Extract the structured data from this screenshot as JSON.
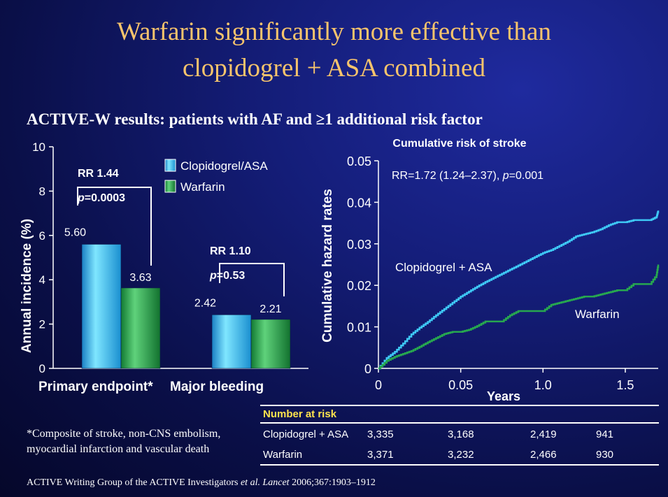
{
  "title_line1": "Warfarin significantly more effective than",
  "title_line2": "clopidogrel + ASA combined",
  "subtitle": "ACTIVE-W results: patients with AF and ≥1 additional risk factor",
  "colors": {
    "title": "#f7c46c",
    "clopidogrel": "#3ec8f5",
    "warfarin": "#27a84f",
    "table_header": "#ffe34d"
  },
  "chart_data": [
    {
      "type": "bar",
      "ylabel": "Annual incidence (%)",
      "ylim": [
        0,
        10
      ],
      "yticks": [
        "0",
        "2",
        "4",
        "6",
        "8",
        "10"
      ],
      "categories": [
        "Primary endpoint*",
        "Major bleeding"
      ],
      "series": [
        {
          "name": "Clopidogrel/ASA",
          "values": [
            5.6,
            2.42
          ],
          "labels": [
            "5.60",
            "2.42"
          ]
        },
        {
          "name": "Warfarin",
          "values": [
            3.63,
            2.21
          ],
          "labels": [
            "3.63",
            "2.21"
          ]
        }
      ],
      "annotations": [
        {
          "rr": "RR 1.44",
          "p_italic": "p",
          "p_rest": "=0.0003"
        },
        {
          "rr": "RR 1.10",
          "p_italic": "p",
          "p_rest": "=0.53"
        }
      ],
      "legend": "top-right"
    },
    {
      "type": "line",
      "title": "Cumulative risk of stroke",
      "xlabel": "Years",
      "ylabel": "Cumulative hazard rates",
      "xlim": [
        0,
        1.7
      ],
      "ylim": [
        0,
        0.05
      ],
      "xticks": [
        "0",
        "0.05",
        "1.0",
        "1.5"
      ],
      "yticks": [
        "0",
        "0.01",
        "0.02",
        "0.03",
        "0.04",
        "0.05"
      ],
      "annotation": {
        "prefix": "RR=1.72 (1.24–2.37), ",
        "p_italic": "p",
        "p_rest": "=0.001"
      },
      "series": [
        {
          "name": "Clopidogrel + ASA",
          "x": [
            0,
            0.05,
            0.1,
            0.15,
            0.2,
            0.25,
            0.3,
            0.35,
            0.4,
            0.45,
            0.5,
            0.55,
            0.6,
            0.65,
            0.7,
            0.75,
            0.8,
            0.85,
            0.9,
            0.95,
            1.0,
            1.05,
            1.1,
            1.15,
            1.2,
            1.25,
            1.3,
            1.35,
            1.4,
            1.45,
            1.5,
            1.55,
            1.6,
            1.65,
            1.69,
            1.7
          ],
          "y": [
            0,
            0.0025,
            0.004,
            0.006,
            0.0082,
            0.0098,
            0.0112,
            0.0128,
            0.0143,
            0.0158,
            0.0173,
            0.0185,
            0.0197,
            0.0208,
            0.0218,
            0.0228,
            0.0238,
            0.0248,
            0.0258,
            0.0268,
            0.0278,
            0.0285,
            0.0295,
            0.0305,
            0.0318,
            0.0323,
            0.0328,
            0.0335,
            0.0345,
            0.0352,
            0.0352,
            0.0357,
            0.0357,
            0.0357,
            0.0365,
            0.038
          ]
        },
        {
          "name": "Warfarin",
          "x": [
            0,
            0.05,
            0.1,
            0.15,
            0.2,
            0.25,
            0.3,
            0.35,
            0.4,
            0.45,
            0.5,
            0.55,
            0.6,
            0.65,
            0.7,
            0.75,
            0.8,
            0.85,
            0.9,
            0.95,
            1.0,
            1.05,
            1.1,
            1.15,
            1.2,
            1.25,
            1.3,
            1.35,
            1.4,
            1.45,
            1.5,
            1.55,
            1.6,
            1.65,
            1.69,
            1.7
          ],
          "y": [
            0,
            0.0018,
            0.0028,
            0.0035,
            0.0042,
            0.0052,
            0.0063,
            0.0073,
            0.0083,
            0.0088,
            0.0088,
            0.0093,
            0.0102,
            0.0113,
            0.0113,
            0.0113,
            0.0128,
            0.0138,
            0.0138,
            0.0138,
            0.0138,
            0.0153,
            0.0158,
            0.0163,
            0.0168,
            0.0173,
            0.0173,
            0.0178,
            0.0183,
            0.0188,
            0.0188,
            0.0203,
            0.0203,
            0.0203,
            0.0225,
            0.025
          ]
        }
      ]
    }
  ],
  "table": {
    "header": "Number at risk",
    "rows": [
      {
        "label": "Clopidogrel + ASA",
        "values": [
          "3,335",
          "3,168",
          "2,419",
          "941"
        ]
      },
      {
        "label": "Warfarin",
        "values": [
          "3,371",
          "3,232",
          "2,466",
          "930"
        ]
      }
    ]
  },
  "footnote": "*Composite of stroke, non-CNS embolism, myocardial infarction and vascular death",
  "reference": {
    "pre": "ACTIVE Writing Group of the ACTIVE Investigators ",
    "ital": "et al. Lancet",
    "post": " 2006;367:1903–1912"
  }
}
